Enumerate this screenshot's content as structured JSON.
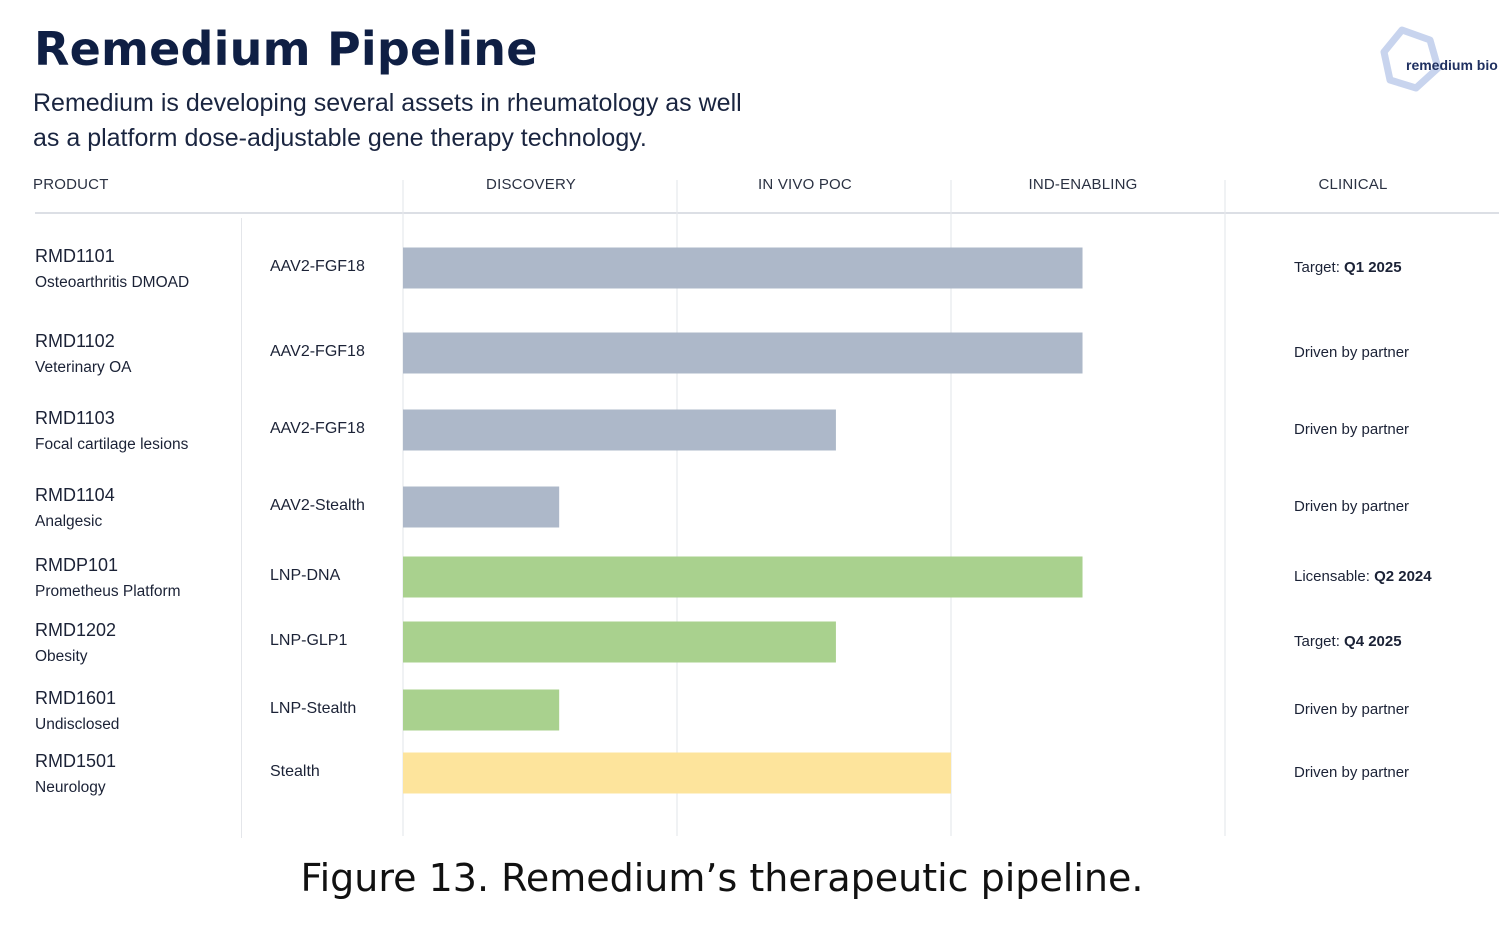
{
  "header": {
    "title": "Remedium Pipeline",
    "subtitle_line1": "Remedium is developing several assets in rheumatology as well",
    "subtitle_line2": "as a platform dose-adjustable gene therapy technology.",
    "logo_text": "remedium bio"
  },
  "columns": {
    "product": "PRODUCT",
    "stages": [
      "DISCOVERY",
      "IN VIVO POC",
      "IND-ENABLING",
      "CLINICAL"
    ]
  },
  "colors": {
    "gray": "#adb8c9",
    "green": "#a9d18e",
    "yellow": "#fde49c",
    "grid": "#e6e8ec",
    "logo": "#c8d4ee"
  },
  "chart_data": {
    "type": "bar",
    "orientation": "horizontal",
    "title": "Remedium Pipeline",
    "x_stages": [
      "DISCOVERY",
      "IN VIVO POC",
      "IND-ENABLING",
      "CLINICAL"
    ],
    "xlim": [
      0,
      4
    ],
    "grid": true,
    "rows": [
      {
        "id": "RMD1101",
        "indication": "Osteoarthritis DMOAD",
        "technology": "AAV2-FGF18",
        "progress": 2.48,
        "color": "gray",
        "status_text": "Target: ",
        "status_bold": "Q1 2025"
      },
      {
        "id": "RMD1102",
        "indication": "Veterinary OA",
        "technology": "AAV2-FGF18",
        "progress": 2.48,
        "color": "gray",
        "status_text": "Driven by partner",
        "status_bold": ""
      },
      {
        "id": "RMD1103",
        "indication": "Focal cartilage lesions",
        "technology": "AAV2-FGF18",
        "progress": 1.58,
        "color": "gray",
        "status_text": "Driven by partner",
        "status_bold": ""
      },
      {
        "id": "RMD1104",
        "indication": "Analgesic",
        "technology": "AAV2-Stealth",
        "progress": 0.57,
        "color": "gray",
        "status_text": "Driven by partner",
        "status_bold": ""
      },
      {
        "id": "RMDP101",
        "indication": "Prometheus Platform",
        "technology": "LNP-DNA",
        "progress": 2.48,
        "color": "green",
        "status_text": "Licensable: ",
        "status_bold": "Q2 2024"
      },
      {
        "id": "RMD1202",
        "indication": "Obesity",
        "technology": "LNP-GLP1",
        "progress": 1.58,
        "color": "green",
        "status_text": "Target: ",
        "status_bold": "Q4 2025"
      },
      {
        "id": "RMD1601",
        "indication": "Undisclosed",
        "technology": "LNP-Stealth",
        "progress": 0.57,
        "color": "green",
        "status_text": "Driven by partner",
        "status_bold": ""
      },
      {
        "id": "RMD1501",
        "indication": "Neurology",
        "technology": "Stealth",
        "progress": 2.0,
        "color": "yellow",
        "status_text": "Driven by partner",
        "status_bold": ""
      }
    ]
  },
  "caption": "Figure 13. Remedium’s therapeutic pipeline."
}
